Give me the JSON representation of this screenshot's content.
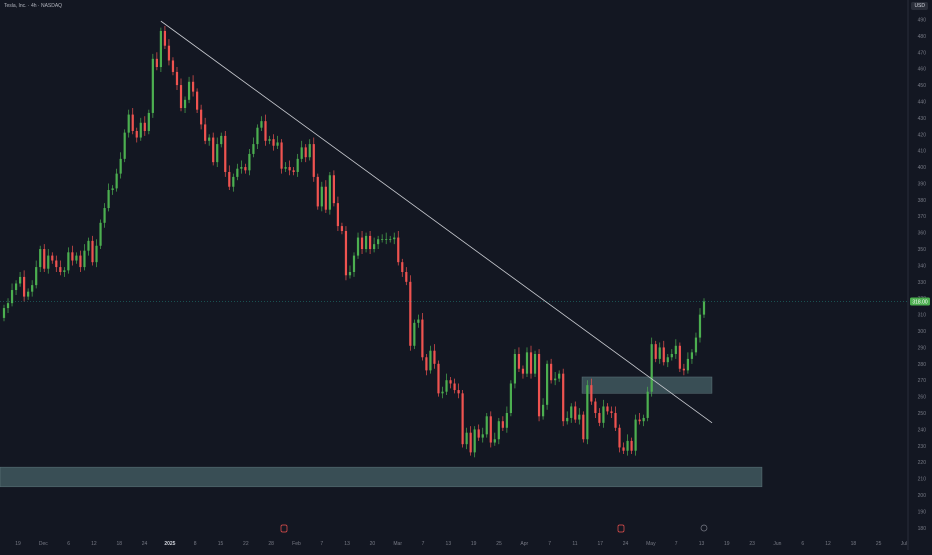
{
  "header": {
    "symbol_title": "Tesla, Inc. · 4h · NASDAQ",
    "currency": "USD"
  },
  "colors": {
    "background": "#131722",
    "up": "#26a69a",
    "up_body": "#4caf50",
    "down": "#ef5350",
    "zone_fill": "#4f6b71",
    "zone_stroke": "#8fb2b6",
    "trendline": "#c9cbd1",
    "axis_text": "#787b86",
    "last_price_bg": "#4caf50"
  },
  "chart_data": {
    "type": "candlestick",
    "title": "Tesla, Inc. · 4h · NASDAQ",
    "ylim": [
      175,
      497
    ],
    "y_ticks": [
      180,
      190,
      200,
      210,
      220,
      230,
      240,
      250,
      260,
      270,
      280,
      290,
      300,
      310,
      320,
      330,
      340,
      350,
      360,
      370,
      380,
      390,
      400,
      410,
      420,
      430,
      440,
      450,
      460,
      470,
      480,
      490
    ],
    "x_ticks": [
      "19",
      "Dec",
      "6",
      "12",
      "18",
      "24",
      "2025",
      "8",
      "15",
      "22",
      "28",
      "Feb",
      "7",
      "13",
      "20",
      "Mar",
      "7",
      "13",
      "19",
      "25",
      "Apr",
      "7",
      "11",
      "17",
      "24",
      "May",
      "7",
      "13",
      "19",
      "23",
      "Jun",
      "6",
      "12",
      "18",
      "25",
      "Jul"
    ],
    "last_price": "318.00",
    "closes": [
      314,
      317,
      325,
      329,
      333,
      321,
      324,
      328,
      339,
      350,
      338,
      346,
      343,
      339,
      336,
      337,
      348,
      343,
      346,
      339,
      349,
      355,
      342,
      352,
      366,
      375,
      386,
      387,
      396,
      405,
      421,
      432,
      422,
      418,
      427,
      422,
      433,
      466,
      461,
      483,
      474,
      465,
      458,
      450,
      436,
      441,
      452,
      446,
      435,
      426,
      416,
      418,
      403,
      414,
      419,
      397,
      388,
      394,
      399,
      400,
      398,
      408,
      414,
      424,
      428,
      416,
      417,
      413,
      415,
      399,
      400,
      398,
      397,
      405,
      412,
      406,
      414,
      394,
      376,
      388,
      374,
      395,
      378,
      364,
      361,
      334,
      336,
      346,
      357,
      350,
      358,
      350,
      353,
      356,
      356,
      356,
      356,
      357,
      342,
      336,
      330,
      291,
      305,
      307,
      284,
      276,
      288,
      280,
      262,
      263,
      270,
      268,
      264,
      262,
      231,
      238,
      226,
      240,
      235,
      237,
      248,
      232,
      234,
      245,
      241,
      250,
      268,
      286,
      277,
      274,
      287,
      274,
      286,
      248,
      255,
      280,
      270,
      271,
      274,
      245,
      247,
      254,
      246,
      249,
      234,
      267,
      257,
      250,
      244,
      254,
      251,
      250,
      241,
      229,
      227,
      233,
      227,
      246,
      245,
      247,
      263,
      292,
      283,
      290,
      281,
      284,
      286,
      291,
      277,
      276,
      283,
      287,
      296,
      310,
      318
    ],
    "trendline": {
      "start": {
        "date": "2024-12-18",
        "price": 489
      },
      "end": {
        "date": "2025-05-14",
        "price": 244
      }
    },
    "zones": [
      {
        "name": "resistance-retest-zone",
        "price_low": 262,
        "price_high": 272
      },
      {
        "name": "demand-zone",
        "price_low": 205,
        "price_high": 217
      }
    ]
  }
}
